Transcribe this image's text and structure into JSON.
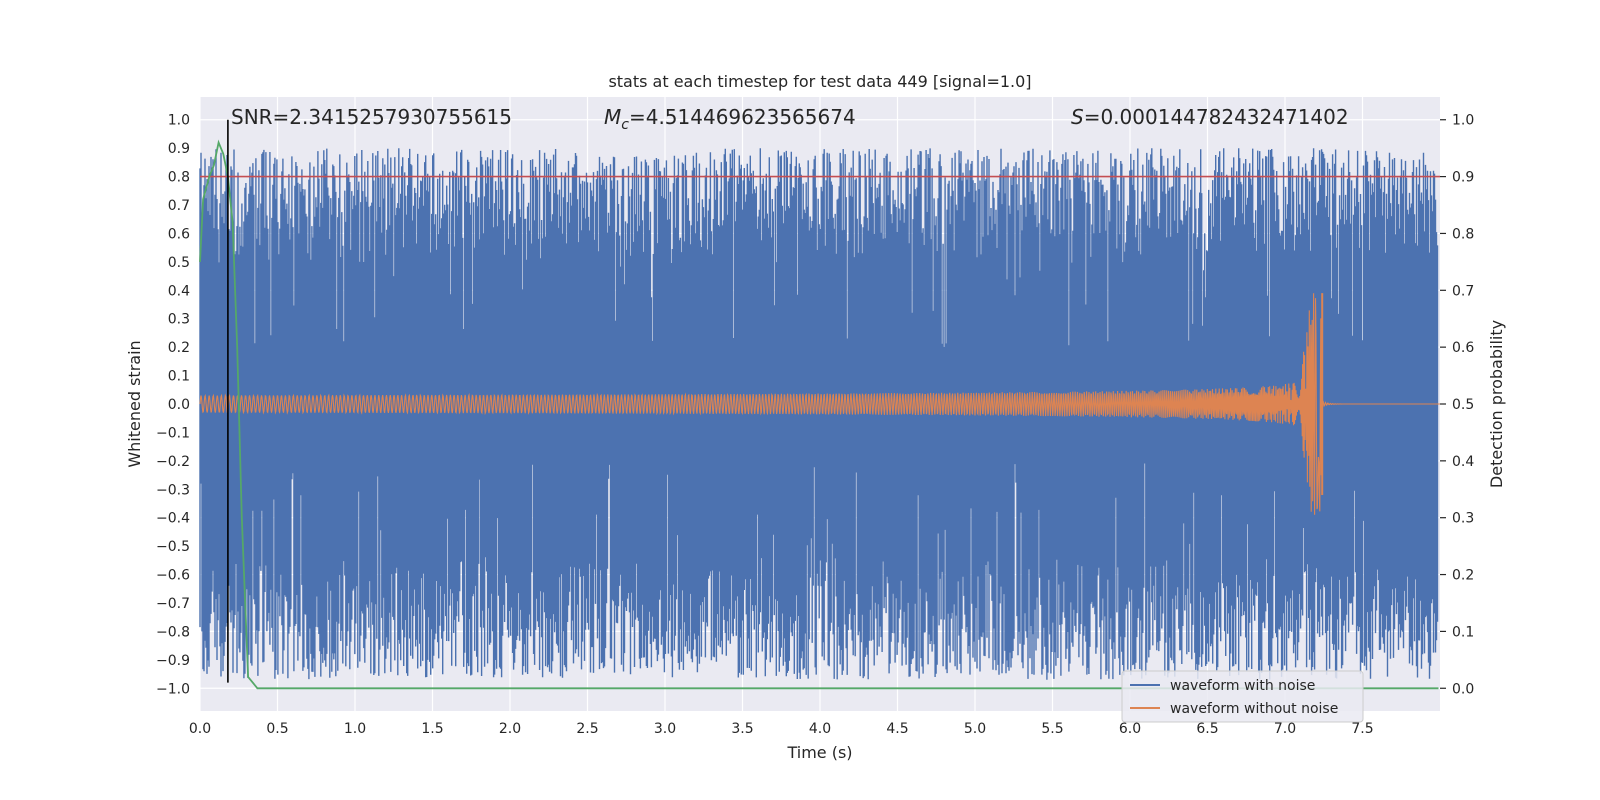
{
  "chart_data": {
    "type": "line",
    "title": "stats at each timestep for test data 449 [signal=1.0]",
    "xlabel": "Time (s)",
    "ylabel_left": "Whitened strain",
    "ylabel_right": "Detection probability",
    "xlim": [
      0.0,
      8.0
    ],
    "ylim_left": [
      -1.08,
      1.08
    ],
    "ylim_right": [
      -0.04,
      1.04
    ],
    "x_ticks": [
      "0.0",
      "0.5",
      "1.0",
      "1.5",
      "2.0",
      "2.5",
      "3.0",
      "3.5",
      "4.0",
      "4.5",
      "5.0",
      "5.5",
      "6.0",
      "6.5",
      "7.0",
      "7.5"
    ],
    "x_tick_values": [
      0.0,
      0.5,
      1.0,
      1.5,
      2.0,
      2.5,
      3.0,
      3.5,
      4.0,
      4.5,
      5.0,
      5.5,
      6.0,
      6.5,
      7.0,
      7.5
    ],
    "y_left_ticks": [
      "1.0",
      "0.9",
      "0.8",
      "0.7",
      "0.6",
      "0.5",
      "0.4",
      "0.3",
      "0.2",
      "0.1",
      "0.0",
      "−0.1",
      "−0.2",
      "−0.3",
      "−0.4",
      "−0.5",
      "−0.6",
      "−0.7",
      "−0.8",
      "−0.9",
      "−1.0"
    ],
    "y_left_tick_values": [
      1.0,
      0.9,
      0.8,
      0.7,
      0.6,
      0.5,
      0.4,
      0.3,
      0.2,
      0.1,
      0.0,
      -0.1,
      -0.2,
      -0.3,
      -0.4,
      -0.5,
      -0.6,
      -0.7,
      -0.8,
      -0.9,
      -1.0
    ],
    "y_right_ticks": [
      "1.0",
      "0.9",
      "0.8",
      "0.7",
      "0.6",
      "0.5",
      "0.4",
      "0.3",
      "0.2",
      "0.1",
      "0.0"
    ],
    "y_right_tick_values": [
      1.0,
      0.9,
      0.8,
      0.7,
      0.6,
      0.5,
      0.4,
      0.3,
      0.2,
      0.1,
      0.0
    ],
    "annotations": {
      "snr": "SNR=2.3415257930755615",
      "mc_symbol": "M",
      "mc_subscript": "c",
      "mc_value": "=4.514469623565674",
      "s_symbol": "S",
      "s_value": "=0.000144782432471402"
    },
    "threshold": {
      "value": 0.9,
      "axis": "right",
      "color": "#c44e52"
    },
    "marker_line": {
      "x": 0.18,
      "color": "#000000"
    },
    "series": [
      {
        "name": "waveform with noise",
        "color": "#4c72b0",
        "axis": "left",
        "envelope_max_approx": 0.9,
        "envelope_min_approx": -0.97
      },
      {
        "name": "waveform without noise",
        "color": "#dd8452",
        "axis": "left",
        "amplitude_start": 0.03,
        "peak_time": 7.24,
        "peak_max": 0.39,
        "peak_min": -0.32
      },
      {
        "name": "detection probability",
        "color": "#55a868",
        "axis": "right",
        "x": [
          0.0,
          0.02,
          0.06,
          0.09,
          0.12,
          0.15,
          0.18,
          0.21,
          0.24,
          0.27,
          0.31,
          0.37,
          7.99
        ],
        "y": [
          0.75,
          0.86,
          0.9,
          0.92,
          0.96,
          0.94,
          0.9,
          0.82,
          0.6,
          0.3,
          0.02,
          0.0,
          0.0
        ]
      }
    ],
    "legend": [
      "waveform with noise",
      "waveform without noise"
    ],
    "legend_position": "bottom-right",
    "grid": true
  },
  "colors": {
    "axes_bg": "#eaeaf2",
    "grid": "#ffffff",
    "noise": "#4c72b0",
    "clean": "#dd8452",
    "prob": "#55a868",
    "threshold": "#c44e52"
  }
}
